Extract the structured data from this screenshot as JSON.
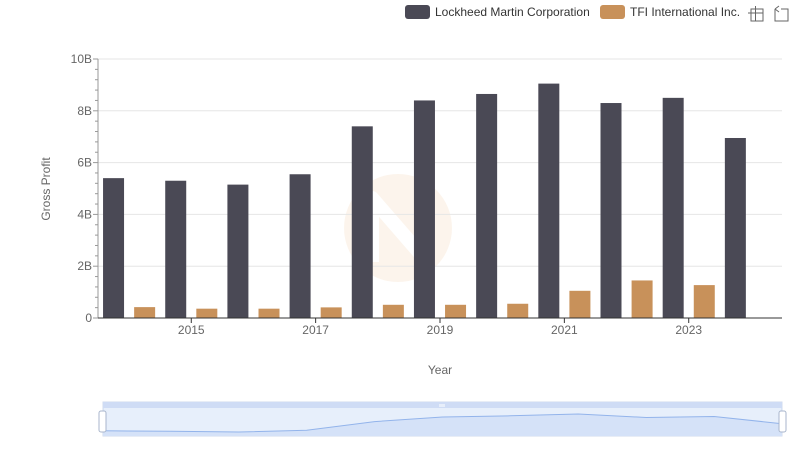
{
  "toolbar": {
    "icons": [
      "zoom-icon",
      "restore-icon"
    ]
  },
  "colors": {
    "lockheed": "#4a4955",
    "tfi": "#c8915a",
    "grid": "#e6e6e6",
    "axis": "#333333",
    "slider_fill": "#dbe6fb",
    "slider_border": "#c5d3ee",
    "slider_line": "#8fb0ea"
  },
  "chart_data": {
    "type": "bar",
    "xlabel": "Year",
    "ylabel": "Gross Profit",
    "ylim": [
      0,
      10000000000
    ],
    "y_ticks": [
      {
        "value": 0,
        "label": "0"
      },
      {
        "value": 2000000000,
        "label": "2B"
      },
      {
        "value": 4000000000,
        "label": "4B"
      },
      {
        "value": 6000000000,
        "label": "6B"
      },
      {
        "value": 8000000000,
        "label": "8B"
      },
      {
        "value": 10000000000,
        "label": "10B"
      }
    ],
    "categories": [
      2014,
      2015,
      2016,
      2017,
      2018,
      2019,
      2020,
      2021,
      2022,
      2023,
      2024
    ],
    "x_tick_labels": [
      "2015",
      "2017",
      "2019",
      "2021",
      "2023"
    ],
    "x_tick_years": [
      2015,
      2017,
      2019,
      2021,
      2023
    ],
    "legend_position": "top-right",
    "grid": true,
    "series": [
      {
        "name": "Lockheed Martin Corporation",
        "values": [
          5400000000,
          5300000000,
          5150000000,
          5550000000,
          7400000000,
          8400000000,
          8650000000,
          9050000000,
          8300000000,
          8500000000,
          6950000000
        ]
      },
      {
        "name": "TFI International Inc.",
        "values": [
          420000000,
          360000000,
          360000000,
          410000000,
          510000000,
          510000000,
          550000000,
          1050000000,
          1450000000,
          1270000000,
          null
        ]
      }
    ]
  }
}
